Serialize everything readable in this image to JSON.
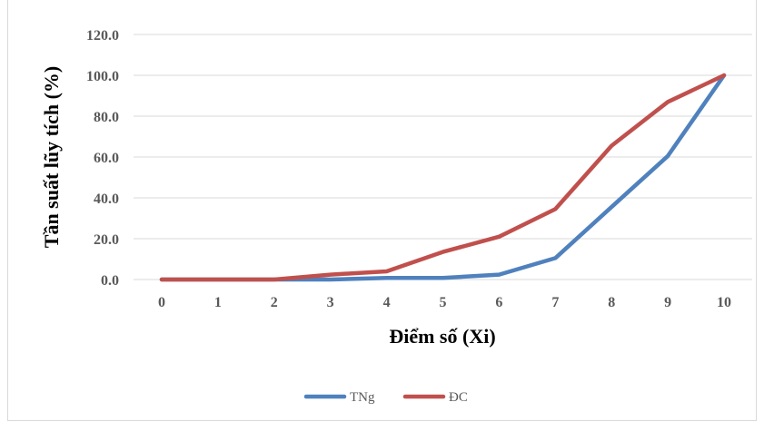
{
  "chart_data": {
    "type": "line",
    "title": "",
    "xlabel": "Điểm số (Xi)",
    "ylabel": "Tần suất lũy tích (%)",
    "categories": [
      "0",
      "1",
      "2",
      "3",
      "4",
      "5",
      "6",
      "7",
      "8",
      "9",
      "10"
    ],
    "x": [
      0,
      1,
      2,
      3,
      4,
      5,
      6,
      7,
      8,
      9,
      10
    ],
    "y_ticks": [
      "0.0",
      "20.0",
      "40.0",
      "60.0",
      "80.0",
      "100.0",
      "120.0"
    ],
    "ylim": [
      0,
      120
    ],
    "grid": true,
    "legend_position": "bottom",
    "series": [
      {
        "name": "TNg",
        "color": "#4f81bd",
        "values": [
          0.0,
          0.0,
          0.0,
          0.0,
          0.8,
          0.8,
          2.4,
          10.5,
          35.5,
          60.5,
          100.0
        ]
      },
      {
        "name": "ĐC",
        "color": "#c0504d",
        "values": [
          0.0,
          0.0,
          0.0,
          2.4,
          4.0,
          13.5,
          21.0,
          34.5,
          65.5,
          87.0,
          100.0
        ]
      }
    ]
  }
}
